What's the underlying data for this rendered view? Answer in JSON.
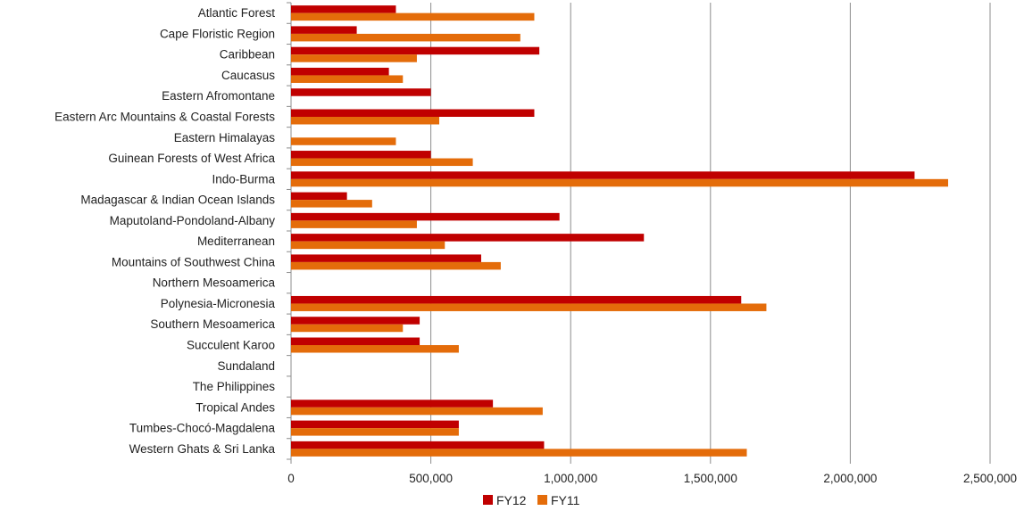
{
  "chart_data": {
    "type": "bar",
    "orientation": "horizontal",
    "categories": [
      "Atlantic Forest",
      "Cape Floristic Region",
      "Caribbean",
      "Caucasus",
      "Eastern Afromontane",
      "Eastern Arc Mountains & Coastal Forests",
      "Eastern Himalayas",
      "Guinean Forests of West Africa",
      "Indo-Burma",
      "Madagascar & Indian Ocean Islands",
      "Maputoland-Pondoland-Albany",
      "Mediterranean",
      "Mountains of Southwest China",
      "Northern Mesoamerica",
      "Polynesia-Micronesia",
      "Southern Mesoamerica",
      "Succulent Karoo",
      "Sundaland",
      "The Philippines",
      "Tropical Andes",
      "Tumbes-Chocó-Magdalena",
      "Western Ghats & Sri Lanka"
    ],
    "series": [
      {
        "name": "FY12",
        "color": "#c00000",
        "values": [
          375000,
          235000,
          888000,
          350000,
          500000,
          870000,
          0,
          500000,
          2230000,
          200000,
          960000,
          1262000,
          680000,
          0,
          1610000,
          460000,
          460000,
          0,
          0,
          722000,
          600000,
          905000
        ]
      },
      {
        "name": "FY11",
        "color": "#e46c0a",
        "values": [
          870000,
          820000,
          450000,
          400000,
          0,
          530000,
          375000,
          650000,
          2350000,
          290000,
          450000,
          550000,
          750000,
          0,
          1700000,
          400000,
          600000,
          0,
          0,
          900000,
          600000,
          1630000
        ]
      }
    ],
    "x_ticks": [
      "0",
      "500,000",
      "1,000,000",
      "1,500,000",
      "2,000,000",
      "2,500,000"
    ],
    "xlim": [
      0,
      2500000
    ],
    "grid": true,
    "legend_position": "bottom"
  }
}
